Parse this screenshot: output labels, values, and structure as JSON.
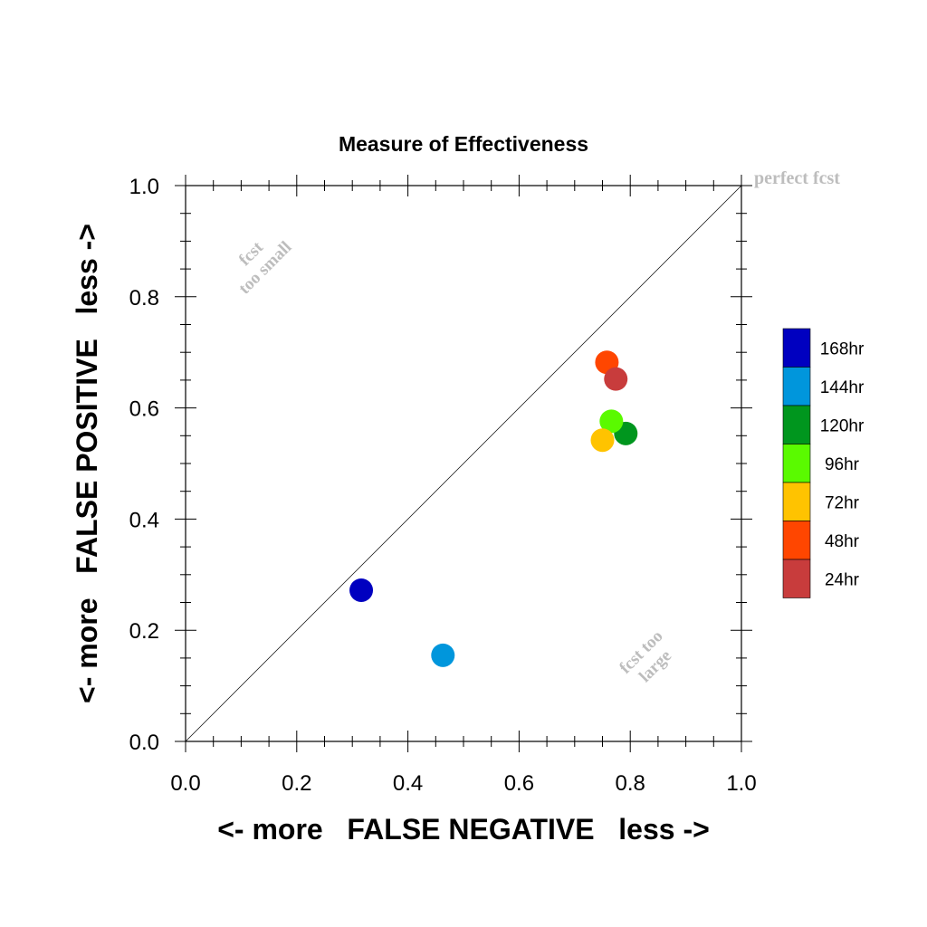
{
  "chart_data": {
    "type": "scatter",
    "title": "Measure of Effectiveness",
    "xlabel": "<- more   FALSE NEGATIVE   less ->",
    "ylabel": "<- more   FALSE POSITIVE   less ->",
    "xlim": [
      0.0,
      1.0
    ],
    "ylim": [
      0.0,
      1.0
    ],
    "x_ticks": [
      "0.0",
      "0.2",
      "0.4",
      "0.6",
      "0.8",
      "1.0"
    ],
    "y_ticks": [
      "0.0",
      "0.2",
      "0.4",
      "0.6",
      "0.8",
      "1.0"
    ],
    "grid": false,
    "diagonal_line": true,
    "legend_placement": "right",
    "annotations": {
      "perfect": "perfect fcst",
      "too_small": [
        "fcst",
        "too small"
      ],
      "too_large": [
        "fcst too",
        "large"
      ]
    },
    "series": [
      {
        "name": "168hr",
        "color": "#0000c0",
        "x": 0.316,
        "y": 0.272
      },
      {
        "name": "144hr",
        "color": "#0096dc",
        "x": 0.463,
        "y": 0.155
      },
      {
        "name": "120hr",
        "color": "#00961e",
        "x": 0.792,
        "y": 0.554
      },
      {
        "name": "96hr",
        "color": "#5afa00",
        "x": 0.766,
        "y": 0.576
      },
      {
        "name": "72hr",
        "color": "#ffc300",
        "x": 0.75,
        "y": 0.542
      },
      {
        "name": "48hr",
        "color": "#ff4600",
        "x": 0.758,
        "y": 0.682
      },
      {
        "name": "24hr",
        "color": "#c83c3c",
        "x": 0.774,
        "y": 0.652
      }
    ]
  }
}
